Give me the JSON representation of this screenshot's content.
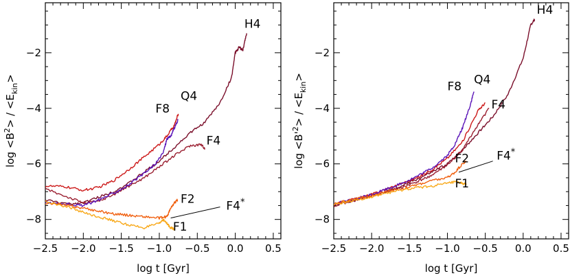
{
  "chart_data": [
    {
      "type": "line",
      "panel": "left",
      "xlabel": "log t [Gyr]",
      "ylabel": "log <B²> / <E_kin>",
      "ylabel_parts": {
        "log": "log",
        "num": "<B",
        "sup": "2",
        "mid": "> / <E",
        "sub": "kin",
        "end": ">"
      },
      "xlim": [
        -2.5,
        0.6
      ],
      "ylim": [
        -8.7,
        -0.2
      ],
      "xticks": [
        -2.5,
        -2.0,
        -1.5,
        -1.0,
        -0.5,
        0.0,
        0.5
      ],
      "xtick_labels": [
        "-2.5",
        "-2.0",
        "-1.5",
        "-1.0",
        "-0.5",
        "0.0",
        "0.5"
      ],
      "yticks": [
        -8,
        -6,
        -4,
        -2
      ],
      "ytick_labels": [
        "-8",
        "-6",
        "-4",
        "-2"
      ],
      "grid": false,
      "series": [
        {
          "name": "H4",
          "color": "#7a0e2a",
          "x": [
            -2.5,
            -2.2,
            -2.0,
            -1.8,
            -1.6,
            -1.4,
            -1.2,
            -1.0,
            -0.8,
            -0.6,
            -0.4,
            -0.2,
            -0.05,
            0.0,
            0.05,
            0.1,
            0.15
          ],
          "y": [
            -7.3,
            -7.45,
            -7.4,
            -7.2,
            -7.0,
            -6.7,
            -6.3,
            -5.9,
            -5.4,
            -4.9,
            -4.5,
            -3.8,
            -2.9,
            -2.0,
            -1.8,
            -1.9,
            -1.3
          ]
        },
        {
          "name": "Q4",
          "color": "#cc1818",
          "x": [
            -2.5,
            -2.25,
            -2.0,
            -1.8,
            -1.6,
            -1.4,
            -1.2,
            -1.0,
            -0.9,
            -0.8,
            -0.75
          ],
          "y": [
            -6.8,
            -6.82,
            -6.95,
            -6.85,
            -6.6,
            -6.2,
            -5.75,
            -5.3,
            -5.0,
            -4.6,
            -4.2
          ]
        },
        {
          "name": "F4",
          "color": "#9a1e30",
          "x": [
            -2.5,
            -2.2,
            -2.0,
            -1.8,
            -1.6,
            -1.4,
            -1.2,
            -1.0,
            -0.8,
            -0.6,
            -0.45,
            -0.4
          ],
          "y": [
            -6.9,
            -7.2,
            -7.4,
            -7.35,
            -7.1,
            -6.8,
            -6.5,
            -6.1,
            -5.7,
            -5.35,
            -5.3,
            -5.45
          ]
        },
        {
          "name": "F8",
          "color": "#5a14b8",
          "x": [
            -2.5,
            -2.2,
            -2.0,
            -1.8,
            -1.6,
            -1.4,
            -1.2,
            -1.05,
            -0.95,
            -0.9,
            -0.85,
            -0.8,
            -0.75
          ],
          "y": [
            -7.4,
            -7.45,
            -7.5,
            -7.3,
            -7.05,
            -6.75,
            -6.35,
            -6.0,
            -5.6,
            -5.1,
            -5.0,
            -4.7,
            -4.4
          ]
        },
        {
          "name": "F2",
          "color": "#f06010",
          "x": [
            -2.5,
            -2.2,
            -2.0,
            -1.8,
            -1.6,
            -1.4,
            -1.2,
            -1.0,
            -0.9,
            -0.85,
            -0.8,
            -0.76
          ],
          "y": [
            -7.4,
            -7.5,
            -7.6,
            -7.7,
            -7.8,
            -7.85,
            -7.9,
            -7.95,
            -7.9,
            -7.6,
            -7.4,
            -7.3
          ]
        },
        {
          "name": "F1",
          "color": "#f8a818",
          "x": [
            -2.5,
            -2.2,
            -2.0,
            -1.8,
            -1.6,
            -1.4,
            -1.2,
            -1.0,
            -0.95,
            -0.9,
            -0.85,
            -0.8
          ],
          "y": [
            -7.35,
            -7.55,
            -7.75,
            -7.9,
            -8.05,
            -8.2,
            -8.3,
            -8.15,
            -8.0,
            -8.15,
            -8.3,
            -8.35
          ]
        }
      ],
      "curve_labels": [
        {
          "text": "H4",
          "x": 0.12,
          "y": -1.1
        },
        {
          "text": "Q4",
          "x": -0.72,
          "y": -3.7
        },
        {
          "text": "F8",
          "x": -1.05,
          "y": -4.15
        },
        {
          "text": "F4",
          "x": -0.38,
          "y": -5.3
        },
        {
          "text": "F2",
          "x": -0.72,
          "y": -7.4
        },
        {
          "text": "F4*",
          "x": -0.12,
          "y": -7.65
        },
        {
          "text": "F1",
          "x": -0.82,
          "y": -8.4
        }
      ],
      "leader_line": {
        "from": [
          -0.2,
          -7.55
        ],
        "to": [
          -0.85,
          -7.95
        ]
      }
    },
    {
      "type": "line",
      "panel": "right",
      "xlabel": "log t [Gyr]",
      "ylabel": "log <B'²> / <E_kin>",
      "ylabel_parts": {
        "log": "log",
        "num": "<B'",
        "sup": "2",
        "mid": "> / <E",
        "sub": "kin",
        "end": ">"
      },
      "xlim": [
        -2.5,
        0.6
      ],
      "ylim": [
        -8.7,
        -0.2
      ],
      "xticks": [
        -2.5,
        -2.0,
        -1.5,
        -1.0,
        -0.5,
        0.0,
        0.5
      ],
      "xtick_labels": [
        "-2.5",
        "-2.0",
        "-1.5",
        "-1.0",
        "-0.5",
        "0.0",
        "0.5"
      ],
      "yticks": [
        -8,
        -6,
        -4,
        -2
      ],
      "ytick_labels": [
        "-8",
        "-6",
        "-4",
        "-2"
      ],
      "grid": false,
      "series": [
        {
          "name": "H4",
          "color": "#7a0e2a",
          "x": [
            -2.5,
            -2.2,
            -2.0,
            -1.8,
            -1.6,
            -1.4,
            -1.2,
            -1.0,
            -0.8,
            -0.6,
            -0.4,
            -0.2,
            0.0,
            0.1,
            0.15
          ],
          "y": [
            -7.5,
            -7.3,
            -7.15,
            -7.0,
            -6.8,
            -6.55,
            -6.3,
            -6.0,
            -5.5,
            -4.9,
            -4.3,
            -3.5,
            -2.2,
            -1.0,
            -0.8
          ]
        },
        {
          "name": "Q4",
          "color": "#cc1818",
          "x": [
            -2.5,
            -2.2,
            -2.0,
            -1.8,
            -1.6,
            -1.4,
            -1.2,
            -1.0,
            -0.8,
            -0.6,
            -0.5
          ],
          "y": [
            -7.45,
            -7.25,
            -7.1,
            -6.9,
            -6.7,
            -6.5,
            -6.2,
            -5.8,
            -5.2,
            -4.1,
            -3.8
          ]
        },
        {
          "name": "F4",
          "color": "#9a1e30",
          "x": [
            -2.5,
            -2.2,
            -2.0,
            -1.8,
            -1.6,
            -1.4,
            -1.2,
            -1.0,
            -0.8,
            -0.6,
            -0.45
          ],
          "y": [
            -7.5,
            -7.3,
            -7.15,
            -7.0,
            -6.85,
            -6.65,
            -6.4,
            -6.05,
            -5.5,
            -4.6,
            -4.0
          ]
        },
        {
          "name": "F8",
          "color": "#5a14b8",
          "x": [
            -2.5,
            -2.2,
            -2.0,
            -1.8,
            -1.6,
            -1.4,
            -1.2,
            -1.0,
            -0.9,
            -0.8,
            -0.7,
            -0.65
          ],
          "y": [
            -7.45,
            -7.25,
            -7.1,
            -6.9,
            -6.7,
            -6.45,
            -6.15,
            -5.7,
            -5.3,
            -4.7,
            -3.9,
            -3.4
          ]
        },
        {
          "name": "F2",
          "color": "#f06010",
          "x": [
            -2.5,
            -2.2,
            -2.0,
            -1.8,
            -1.6,
            -1.4,
            -1.2,
            -1.0,
            -0.9,
            -0.8,
            -0.75
          ],
          "y": [
            -7.45,
            -7.25,
            -7.15,
            -7.0,
            -6.9,
            -6.75,
            -6.6,
            -6.5,
            -6.3,
            -6.0,
            -5.9
          ]
        },
        {
          "name": "F1",
          "color": "#f8a818",
          "x": [
            -2.5,
            -2.2,
            -2.0,
            -1.8,
            -1.6,
            -1.4,
            -1.2,
            -1.0,
            -0.9,
            -0.8,
            -0.75
          ],
          "y": [
            -7.45,
            -7.3,
            -7.2,
            -7.05,
            -6.95,
            -6.85,
            -6.8,
            -6.7,
            -6.65,
            -6.7,
            -6.75
          ]
        }
      ],
      "curve_labels": [
        {
          "text": "H4",
          "x": 0.18,
          "y": -0.6
        },
        {
          "text": "Q4",
          "x": -0.65,
          "y": -3.1
        },
        {
          "text": "F8",
          "x": -1.0,
          "y": -3.35
        },
        {
          "text": "F4",
          "x": -0.42,
          "y": -4.0
        },
        {
          "text": "F2",
          "x": -0.9,
          "y": -5.95
        },
        {
          "text": "F4*",
          "x": -0.35,
          "y": -5.85
        },
        {
          "text": "F1",
          "x": -0.9,
          "y": -6.85
        }
      ],
      "leader_line": {
        "from": [
          -0.4,
          -5.9
        ],
        "to": [
          -0.85,
          -6.3
        ]
      }
    }
  ]
}
